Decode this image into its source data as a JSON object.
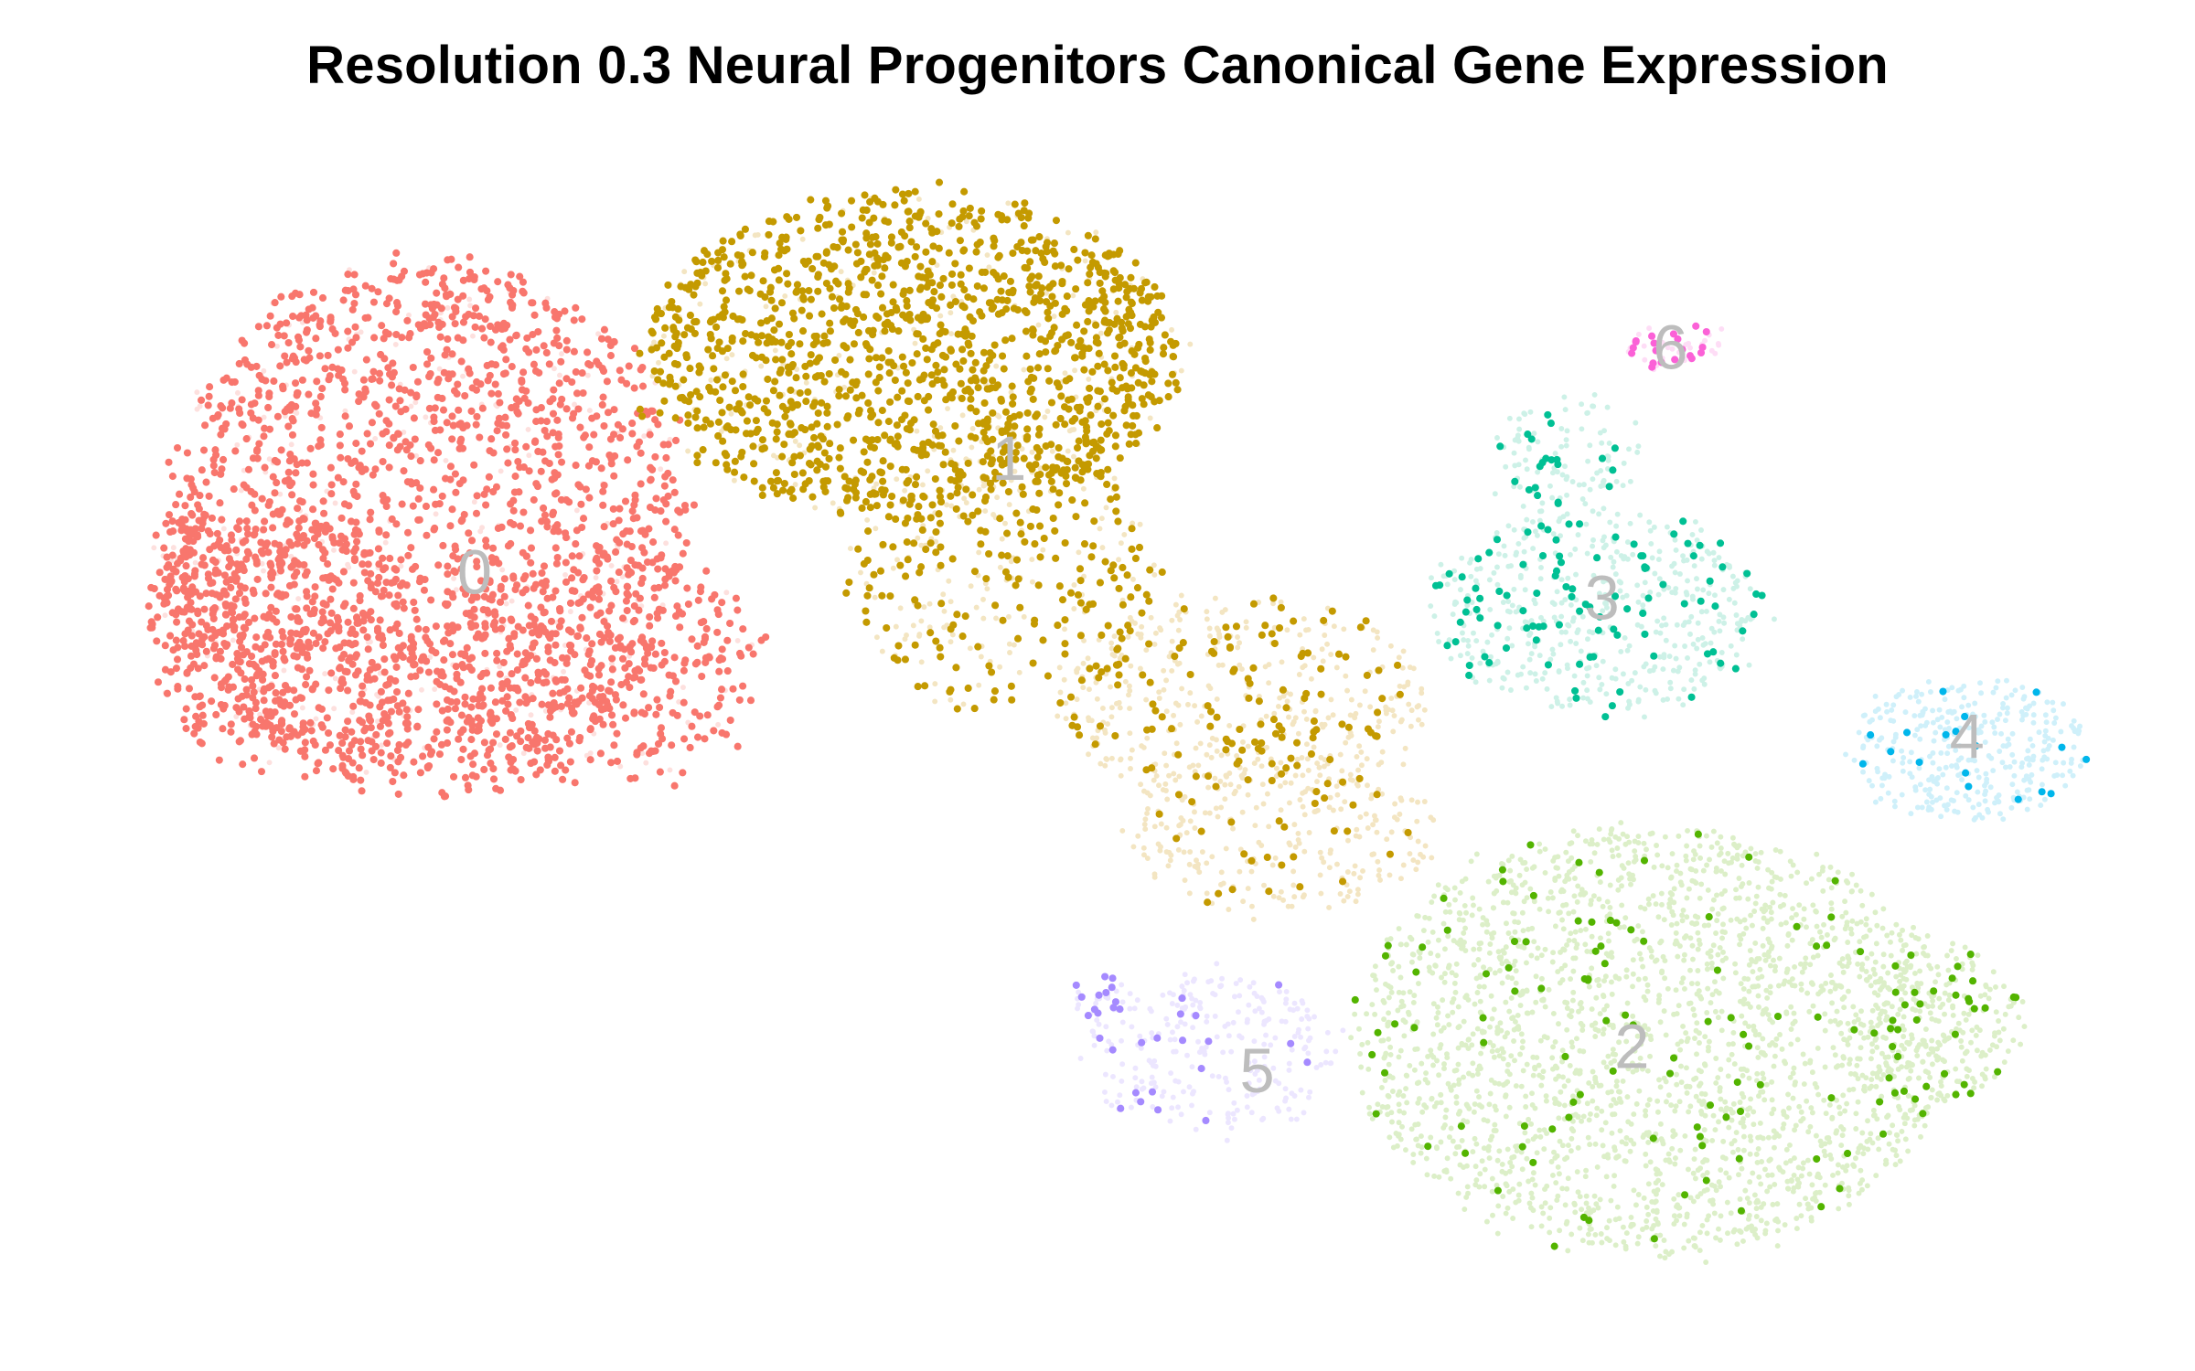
{
  "chart_data": {
    "type": "scatter",
    "title": "Resolution 0.3 Neural Progenitors Canonical Gene Expression",
    "xlabel": "",
    "ylabel": "",
    "axes_visible": false,
    "grid": false,
    "legend": "none",
    "xlim": [
      0,
      1540
    ],
    "ylim": [
      0,
      960
    ],
    "label_color": "#bdbdbd",
    "series": [
      {
        "cluster": "0",
        "color": "#F8766D",
        "faded_color": "#FDE0DE",
        "label_pos": [
          333,
          405
        ],
        "dense_regions": [
          {
            "cx": 300,
            "cy": 370,
            "rx": 185,
            "ry": 190,
            "n": 1900,
            "density": 0.9
          },
          {
            "cx": 200,
            "cy": 450,
            "rx": 100,
            "ry": 90,
            "n": 400,
            "density": 0.9
          },
          {
            "cx": 430,
            "cy": 470,
            "rx": 110,
            "ry": 80,
            "n": 350,
            "density": 0.85
          },
          {
            "cx": 140,
            "cy": 410,
            "rx": 35,
            "ry": 50,
            "n": 90,
            "density": 0.85
          }
        ]
      },
      {
        "cluster": "1",
        "color": "#C49A00",
        "faded_color": "#F3E5C2",
        "label_pos": [
          708,
          325
        ],
        "dense_regions": [
          {
            "cx": 640,
            "cy": 250,
            "rx": 190,
            "ry": 115,
            "n": 1500,
            "density": 0.85
          },
          {
            "cx": 700,
            "cy": 400,
            "rx": 110,
            "ry": 100,
            "n": 380,
            "density": 0.6
          },
          {
            "cx": 870,
            "cy": 490,
            "rx": 130,
            "ry": 70,
            "n": 450,
            "density": 0.25
          },
          {
            "cx": 900,
            "cy": 580,
            "rx": 110,
            "ry": 60,
            "n": 300,
            "density": 0.08
          }
        ]
      },
      {
        "cluster": "2",
        "color": "#53B400",
        "faded_color": "#DCEFC8",
        "label_pos": [
          1145,
          738
        ],
        "dense_regions": [
          {
            "cx": 1160,
            "cy": 730,
            "rx": 210,
            "ry": 150,
            "n": 2400,
            "density": 0.04
          },
          {
            "cx": 1360,
            "cy": 720,
            "rx": 60,
            "ry": 60,
            "n": 250,
            "density": 0.12
          }
        ]
      },
      {
        "cluster": "3",
        "color": "#00C094",
        "faded_color": "#CDF1E7",
        "label_pos": [
          1124,
          423
        ],
        "dense_regions": [
          {
            "cx": 1120,
            "cy": 430,
            "rx": 120,
            "ry": 70,
            "n": 550,
            "density": 0.16
          },
          {
            "cx": 1100,
            "cy": 320,
            "rx": 50,
            "ry": 45,
            "n": 120,
            "density": 0.15
          }
        ]
      },
      {
        "cluster": "4",
        "color": "#00B6EB",
        "faded_color": "#CFF0FA",
        "label_pos": [
          1380,
          520
        ],
        "dense_regions": [
          {
            "cx": 1380,
            "cy": 525,
            "rx": 80,
            "ry": 50,
            "n": 350,
            "density": 0.06
          }
        ]
      },
      {
        "cluster": "5",
        "color": "#A58AFF",
        "faded_color": "#ECE6FF",
        "label_pos": [
          882,
          755
        ],
        "dense_regions": [
          {
            "cx": 850,
            "cy": 740,
            "rx": 90,
            "ry": 55,
            "n": 280,
            "density": 0.07
          },
          {
            "cx": 770,
            "cy": 700,
            "rx": 25,
            "ry": 18,
            "n": 30,
            "density": 0.5
          }
        ]
      },
      {
        "cluster": "6",
        "color": "#FB61D7",
        "faded_color": "#FEDDF6",
        "label_pos": [
          1172,
          247
        ],
        "dense_regions": [
          {
            "cx": 1175,
            "cy": 245,
            "rx": 35,
            "ry": 15,
            "n": 50,
            "density": 0.4
          }
        ]
      }
    ]
  }
}
